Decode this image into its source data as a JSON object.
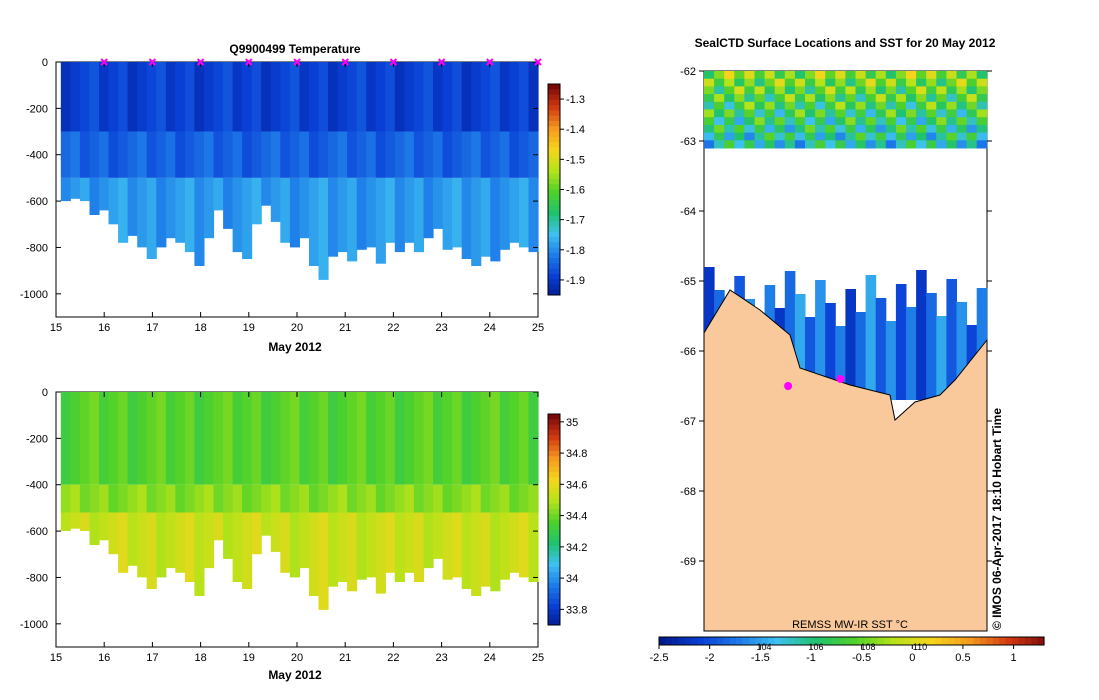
{
  "colors": {
    "depth_palette": [
      "#001a8c",
      "#0a3fd6",
      "#1e7be8",
      "#3ec1f0",
      "#1fc36e",
      "#4fd12a",
      "#b5e31a",
      "#f5d51b",
      "#f39a1f",
      "#d33a12",
      "#7a0a0a"
    ],
    "land": "#f9c89b",
    "marker": "#ff00ff"
  },
  "chart_data": [
    {
      "id": "temperature",
      "type": "heatmap",
      "title": "Q9900499  Temperature",
      "xlabel": "May 2012",
      "ylabel": "",
      "x_ticks": [
        "15",
        "16",
        "17",
        "18",
        "19",
        "20",
        "21",
        "22",
        "23",
        "24",
        "25"
      ],
      "xlim": [
        15,
        25
      ],
      "y_ticks": [
        "0",
        "-200",
        "-400",
        "-600",
        "-800",
        "-1000"
      ],
      "ylim": [
        -1100,
        0
      ],
      "colorbar": {
        "ticks": [
          "-1.3",
          "-1.4",
          "-1.5",
          "-1.6",
          "-1.7",
          "-1.8",
          "-1.9"
        ],
        "range": [
          -1.95,
          -1.25
        ]
      },
      "layers": [
        {
          "depth_top": 0,
          "depth_bottom": -300,
          "value": -1.88
        },
        {
          "depth_top": -300,
          "depth_bottom": -500,
          "value": -1.84
        },
        {
          "depth_top": -500,
          "depth_bottom": -1000,
          "value": -1.78
        }
      ],
      "profile_max_depth": [
        -600,
        -590,
        -600,
        -660,
        -640,
        -700,
        -780,
        -750,
        -800,
        -850,
        -800,
        -760,
        -780,
        -820,
        -880,
        -760,
        -640,
        -720,
        -820,
        -850,
        -700,
        -620,
        -690,
        -780,
        -800,
        -760,
        -880,
        -940,
        -840,
        -820,
        -860,
        -810,
        -800,
        -870,
        -780,
        -820,
        -780,
        -820,
        -760,
        -720,
        -810,
        -800,
        -850,
        -880,
        -840,
        -860,
        -810,
        -780,
        -800,
        -820
      ],
      "surface_markers_x": [
        16,
        17,
        18,
        19,
        20,
        21,
        22,
        23,
        24,
        25
      ]
    },
    {
      "id": "salinity",
      "type": "heatmap",
      "title": "",
      "xlabel": "May 2012",
      "ylabel": "",
      "x_ticks": [
        "15",
        "16",
        "17",
        "18",
        "19",
        "20",
        "21",
        "22",
        "23",
        "24",
        "25"
      ],
      "xlim": [
        15,
        25
      ],
      "y_ticks": [
        "0",
        "-200",
        "-400",
        "-600",
        "-800",
        "-1000"
      ],
      "ylim": [
        -1100,
        0
      ],
      "colorbar": {
        "ticks": [
          "35",
          "34.8",
          "34.6",
          "34.4",
          "34.2",
          "34",
          "33.8"
        ],
        "range": [
          33.7,
          35.05
        ]
      },
      "layers": [
        {
          "depth_top": 0,
          "depth_bottom": -400,
          "value": 34.38
        },
        {
          "depth_top": -400,
          "depth_bottom": -520,
          "value": 34.45
        },
        {
          "depth_top": -520,
          "depth_bottom": -1000,
          "value": 34.55
        }
      ],
      "profile_max_depth": [
        -600,
        -590,
        -600,
        -660,
        -640,
        -700,
        -780,
        -750,
        -800,
        -850,
        -800,
        -760,
        -780,
        -820,
        -880,
        -760,
        -640,
        -720,
        -820,
        -850,
        -700,
        -620,
        -690,
        -780,
        -800,
        -760,
        -880,
        -940,
        -840,
        -820,
        -860,
        -810,
        -800,
        -870,
        -780,
        -820,
        -780,
        -820,
        -760,
        -720,
        -810,
        -800,
        -850,
        -880,
        -840,
        -860,
        -810,
        -780,
        -800,
        -820
      ]
    },
    {
      "id": "sst_map",
      "type": "heatmap",
      "title": "SealCTD Surface Locations and SST for 20 May 2012",
      "y_ticks": [
        "-62",
        "-63",
        "-64",
        "-65",
        "-66",
        "-67",
        "-68",
        "-69"
      ],
      "ylim": [
        -70,
        -62
      ],
      "sst_caption": "REMSS MW-IR SST °C",
      "colorbar": {
        "ticks": [
          "-2.5",
          "-2",
          "-1.5",
          "-1",
          "-0.5",
          "0",
          "0.5",
          "1"
        ],
        "range": [
          -2.5,
          1.3
        ],
        "inner_labels": [
          "104",
          "106",
          "108",
          "110"
        ]
      },
      "regions": [
        {
          "name": "northern warm band",
          "lat_top": -62,
          "lat_bottom": -63.1,
          "value": -0.4
        },
        {
          "name": "coastal strip",
          "lat_top": -64.8,
          "lat_bottom": -66.7,
          "value": -1.85
        }
      ],
      "seal_locations": [
        [
          -66.5,
          0.54
        ],
        [
          -66.4,
          0.8
        ]
      ]
    }
  ],
  "footer": {
    "timestamp_label": "© IMOS 06-Apr-2017 18:10 Hobart Time"
  }
}
